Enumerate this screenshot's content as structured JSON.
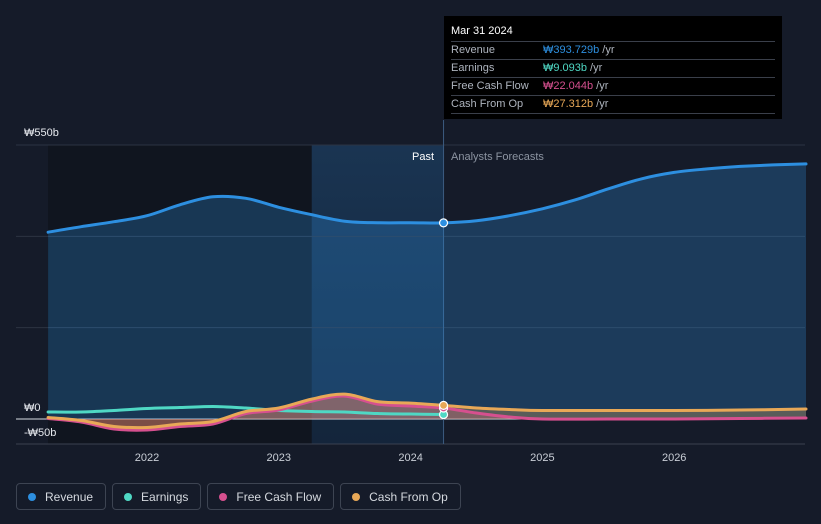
{
  "chart_data": {
    "type": "line",
    "currency_symbol": "₩",
    "y_axis": {
      "labels": [
        "₩550b",
        "₩0",
        "-₩50b"
      ],
      "ylim": [
        -50,
        550
      ],
      "unit": "b"
    },
    "x_axis": {
      "tick_labels": [
        "2022",
        "2023",
        "2024",
        "2025",
        "2026"
      ],
      "tick_years": [
        2022,
        2023,
        2024,
        2025,
        2026
      ],
      "xlim": [
        2021.25,
        2027.0
      ]
    },
    "divider_year": 2024.25,
    "past_shade_start_year": 2023.25,
    "past_label": "Past",
    "forecast_label": "Analysts Forecasts",
    "series": [
      {
        "name": "Revenue",
        "color": "#2d8fe0",
        "fill": true,
        "x": [
          2021.25,
          2021.5,
          2021.75,
          2022.0,
          2022.25,
          2022.5,
          2022.75,
          2023.0,
          2023.25,
          2023.5,
          2023.75,
          2024.0,
          2024.25,
          2024.5,
          2024.75,
          2025.0,
          2025.25,
          2025.5,
          2025.75,
          2026.0,
          2026.25,
          2026.5,
          2026.75,
          2027.0
        ],
        "values": [
          375,
          386,
          396,
          408,
          430,
          446,
          443,
          425,
          410,
          397,
          394,
          394,
          393.729,
          398,
          408,
          422,
          440,
          462,
          482,
          495,
          502,
          507,
          510,
          512
        ]
      },
      {
        "name": "Earnings",
        "color": "#4fd8c4",
        "fill": false,
        "x": [
          2021.25,
          2021.5,
          2021.75,
          2022.0,
          2022.25,
          2022.5,
          2022.75,
          2023.0,
          2023.25,
          2023.5,
          2023.75,
          2024.0,
          2024.25
        ],
        "values": [
          14,
          14,
          17,
          21,
          23,
          25,
          22,
          17,
          15,
          14,
          11,
          10,
          9.093
        ]
      },
      {
        "name": "Free Cash Flow",
        "color": "#d6508f",
        "fill": true,
        "x": [
          2021.25,
          2021.5,
          2021.75,
          2022.0,
          2022.25,
          2022.5,
          2022.75,
          2023.0,
          2023.25,
          2023.5,
          2023.75,
          2024.0,
          2024.25,
          2024.5,
          2024.75,
          2025.0,
          2025.5,
          2026.0,
          2026.5,
          2027.0
        ],
        "values": [
          1,
          -6,
          -20,
          -22,
          -15,
          -10,
          11,
          18,
          36,
          46,
          30,
          26,
          22.044,
          12,
          4,
          0,
          0,
          0,
          1,
          2
        ]
      },
      {
        "name": "Cash From Op",
        "color": "#e8a857",
        "fill": true,
        "x": [
          2021.25,
          2021.5,
          2021.75,
          2022.0,
          2022.25,
          2022.5,
          2022.75,
          2023.0,
          2023.25,
          2023.5,
          2023.75,
          2024.0,
          2024.25,
          2024.5,
          2024.75,
          2025.0,
          2025.5,
          2026.0,
          2026.5,
          2027.0
        ],
        "values": [
          3,
          -3,
          -15,
          -17,
          -10,
          -5,
          15,
          22,
          40,
          50,
          35,
          32,
          27.312,
          22,
          19,
          17,
          17,
          17,
          18,
          20
        ]
      }
    ]
  },
  "tooltip": {
    "date": "Mar 31 2024",
    "rows": [
      {
        "name": "Revenue",
        "value": "₩393.729b",
        "unit": "/yr",
        "color": "#2d8fe0"
      },
      {
        "name": "Earnings",
        "value": "₩9.093b",
        "unit": "/yr",
        "color": "#4fd8c4"
      },
      {
        "name": "Free Cash Flow",
        "value": "₩22.044b",
        "unit": "/yr",
        "color": "#d6508f"
      },
      {
        "name": "Cash From Op",
        "value": "₩27.312b",
        "unit": "/yr",
        "color": "#e8a857"
      }
    ]
  },
  "legend": [
    {
      "label": "Revenue",
      "color": "#2d8fe0"
    },
    {
      "label": "Earnings",
      "color": "#4fd8c4"
    },
    {
      "label": "Free Cash Flow",
      "color": "#d6508f"
    },
    {
      "label": "Cash From Op",
      "color": "#e8a857"
    }
  ]
}
